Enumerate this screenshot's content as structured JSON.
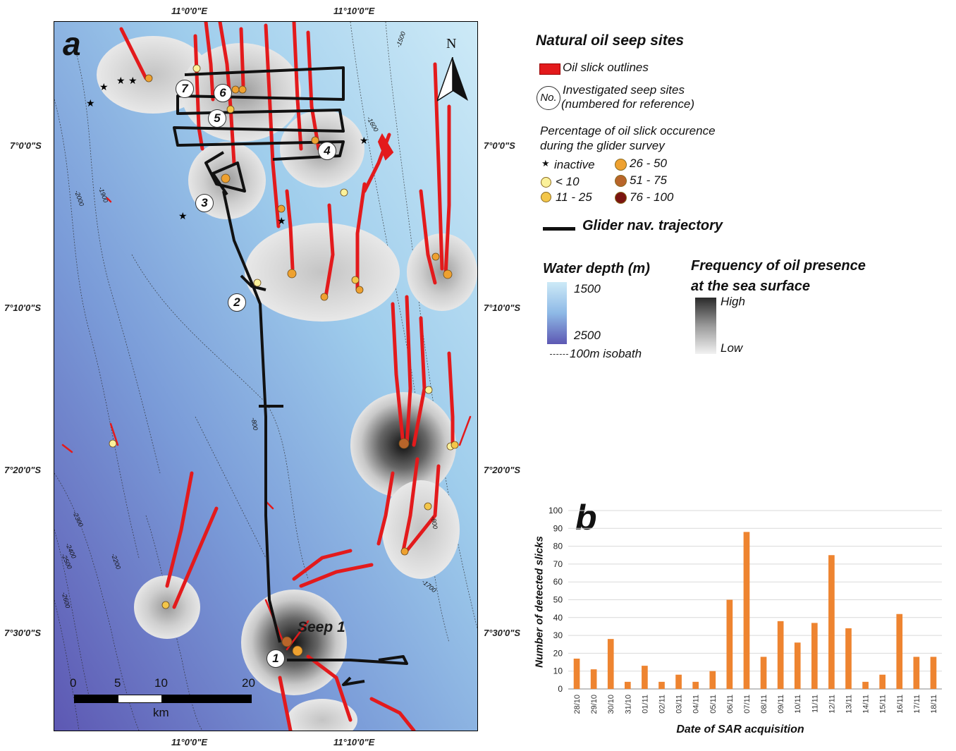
{
  "map": {
    "panel_letter": "a",
    "north_label": "N",
    "lon_ticks": [
      "11°0'0\"E",
      "11°10'0\"E"
    ],
    "lat_ticks": [
      "7°0'0\"S",
      "7°10'0\"S",
      "7°20'0\"S",
      "7°30'0\"S"
    ],
    "isobath_labels": [
      "-1500",
      "-1600",
      "-1900",
      "-2000",
      "-800",
      "-2300",
      "-2400",
      "-2500",
      "-2200",
      "-2600",
      "-1700",
      "-800"
    ],
    "site_numbers": [
      "1",
      "2",
      "3",
      "4",
      "5",
      "6",
      "7"
    ],
    "seep_label": "Seep 1",
    "scale": {
      "ticks": [
        "0",
        "5",
        "10",
        "20"
      ],
      "unit": "km"
    }
  },
  "legend": {
    "title": "Natural oil seep sites",
    "oil_slick": "Oil slick outlines",
    "investigated_symbol": "No.",
    "investigated_line1": "Investigated seep sites",
    "investigated_line2": "(numbered for reference)",
    "percentage_line1": "Percentage of oil slick occurence",
    "percentage_line2": "during the glider survey",
    "classes": [
      {
        "label": "inactive",
        "color": "#000000"
      },
      {
        "label": "< 10",
        "color": "#fbf19a"
      },
      {
        "label": "11 - 25",
        "color": "#f3c64a"
      },
      {
        "label": "26 - 50",
        "color": "#eea130"
      },
      {
        "label": "51 - 75",
        "color": "#b8652a"
      },
      {
        "label": "76 - 100",
        "color": "#7a1410"
      }
    ],
    "glider": "Glider nav. trajectory",
    "depth_title": "Water depth (m)",
    "depth_max": "1500",
    "depth_min": "2500",
    "isobath": "100m isobath",
    "freq_line1": "Frequency of oil presence",
    "freq_line2": "at the sea surface",
    "freq_high": "High",
    "freq_low": "Low"
  },
  "colors": {
    "slick": "#e31a1c",
    "sea_shallow": "#bfe3f5",
    "sea_deep": "#5a56b0",
    "bar": "#ee8430"
  },
  "chart_data": {
    "type": "bar",
    "panel_letter": "b",
    "categories": [
      "28/10",
      "29/10",
      "30/10",
      "31/10",
      "01/11",
      "02/11",
      "03/11",
      "04/11",
      "05/11",
      "06/11",
      "07/11",
      "08/11",
      "09/11",
      "10/11",
      "11/11",
      "12/11",
      "13/11",
      "14/11",
      "15/11",
      "16/11",
      "17/11",
      "18/11"
    ],
    "values": [
      17,
      11,
      28,
      4,
      13,
      4,
      8,
      4,
      10,
      50,
      88,
      18,
      38,
      26,
      37,
      75,
      34,
      4,
      8,
      42,
      18,
      18
    ],
    "yticks": [
      "0",
      "10",
      "20",
      "30",
      "40",
      "50",
      "60",
      "70",
      "80",
      "90",
      "100"
    ],
    "ylim": [
      0,
      100
    ],
    "xlabel": "Date of SAR acquisition",
    "ylabel": "Number of detected slicks",
    "grid": true
  }
}
